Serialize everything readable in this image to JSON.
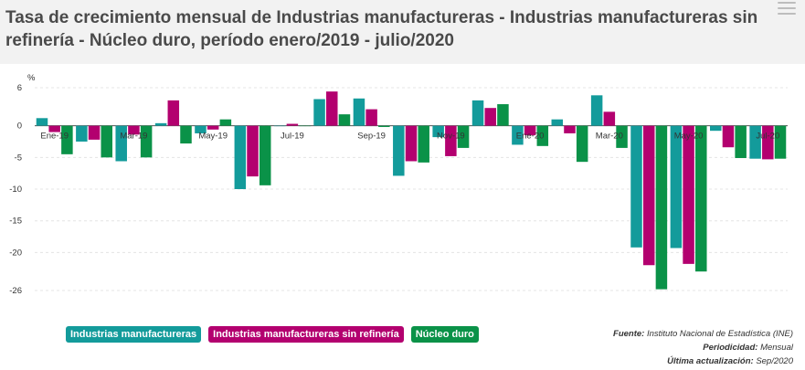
{
  "title": "Tasa de crecimiento mensual de Industrias manufactureras - Industrias manufactureras sin refinería - Núcleo duro, período enero/2019 - julio/2020",
  "menu_icon": "hamburger-menu-icon",
  "colors": {
    "header_bg": "#f2f2f2",
    "series": [
      "#139b9b",
      "#b3006f",
      "#0a9248"
    ]
  },
  "source": {
    "fuente_label": "Fuente:",
    "fuente_value": "Instituto Nacional de Estadística (INE)",
    "periodicidad_label": "Periodicidad:",
    "periodicidad_value": "Mensual",
    "actualizacion_label": "Última actualización:",
    "actualizacion_value": "Sep/2020"
  },
  "chart_data": {
    "type": "bar",
    "ylabel": "%",
    "ylim": [
      -26,
      6
    ],
    "yticks": [
      6,
      0,
      -5,
      -10,
      -15,
      -20,
      -26
    ],
    "grid": true,
    "legend_position": "bottom-left",
    "categories": [
      "Ene-19",
      "Feb-19",
      "Mar-19",
      "Abr-19",
      "May-19",
      "Jun-19",
      "Jul-19",
      "Ago-19",
      "Sep-19",
      "Oct-19",
      "Nov-19",
      "Dic-19",
      "Ene-20",
      "Feb-20",
      "Mar-20",
      "Abr-20",
      "May-20",
      "Jun-20",
      "Jul-20"
    ],
    "category_labels": [
      "Ene-19",
      "",
      "Mar-19",
      "",
      "May-19",
      "",
      "Jul-19",
      "",
      "Sep-19",
      "",
      "Nov-19",
      "",
      "Ene-20",
      "",
      "Mar-20",
      "",
      "May-20",
      "",
      "Jul-20"
    ],
    "series": [
      {
        "name": "Industrias manufactureras",
        "color": "#139b9b",
        "values": [
          1.2,
          -2.5,
          -5.6,
          0.4,
          -1.2,
          -10.0,
          0.0,
          4.2,
          4.3,
          -7.9,
          -1.8,
          4.0,
          -3.0,
          1.0,
          4.8,
          -19.2,
          -19.3,
          -0.8,
          -5.2
        ]
      },
      {
        "name": "Industrias manufactureras sin refinería",
        "color": "#b3006f",
        "values": [
          -1.0,
          -2.2,
          -1.4,
          4.0,
          -0.6,
          -8.0,
          0.3,
          5.4,
          2.6,
          -5.6,
          -4.8,
          2.8,
          -1.5,
          -1.2,
          2.2,
          -22.0,
          -21.8,
          -3.4,
          -5.3
        ]
      },
      {
        "name": "Núcleo duro",
        "color": "#0a9248",
        "values": [
          -4.5,
          -5.0,
          -5.0,
          -2.8,
          1.0,
          -9.4,
          0.0,
          1.8,
          -0.2,
          -5.8,
          -3.5,
          3.4,
          -3.2,
          -5.7,
          -3.5,
          -25.8,
          -23.0,
          -5.1,
          -5.2
        ]
      }
    ]
  }
}
